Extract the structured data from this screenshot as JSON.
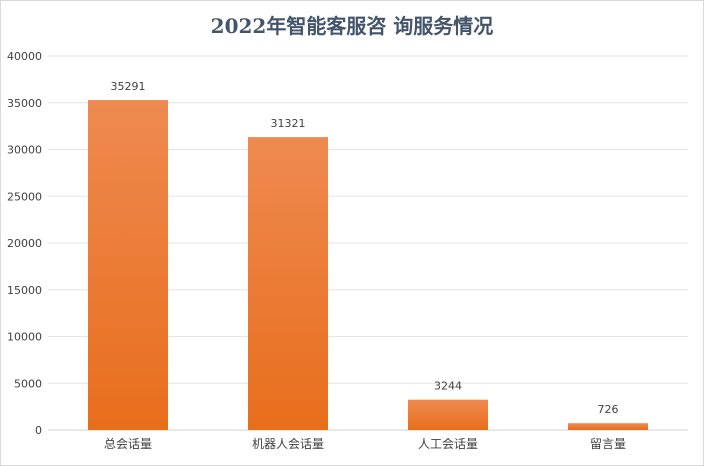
{
  "chart_data": {
    "type": "bar",
    "title": "2022年智能客服咨 询服务情况",
    "categories": [
      "总会话量",
      "机器人会话量",
      "人工会话量",
      "留言量"
    ],
    "values": [
      35291,
      31321,
      3244,
      726
    ],
    "ylim": [
      0,
      40000
    ],
    "yticks": [
      0,
      5000,
      10000,
      15000,
      20000,
      25000,
      30000,
      35000,
      40000
    ],
    "grid": true,
    "legend": "none",
    "colors": {
      "bar_top": "#ee8a50",
      "bar_bottom": "#e86e1c",
      "grid": "#e3e3e3",
      "text": "#404040",
      "title": "#44546a"
    }
  }
}
